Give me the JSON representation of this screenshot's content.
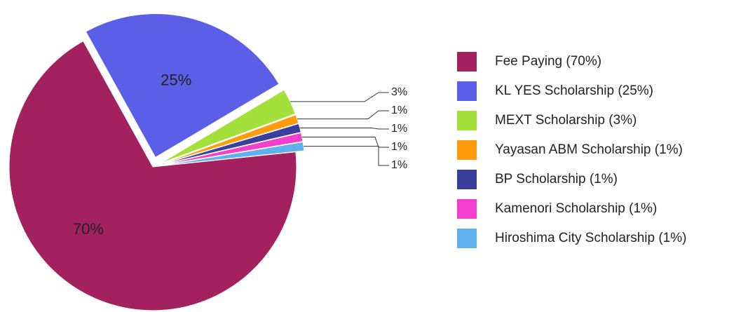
{
  "chart_data": {
    "type": "pie",
    "categories": [
      "Fee Paying (70%)",
      "KL YES Scholarship (25%)",
      "MEXT Scholarship (3%)",
      "Yayasan ABM Scholarship (1%)",
      "BP Scholarship (1%)",
      "Kamenori Scholarship (1%)",
      "Hiroshima City Scholarship (1%)"
    ],
    "values": [
      70,
      25,
      3,
      1,
      1,
      1,
      1
    ],
    "value_labels": [
      "70%",
      "25%",
      "3%",
      "1%",
      "1%",
      "1%",
      "1%"
    ],
    "colors": [
      "#a3215e",
      "#5b5ee6",
      "#a3e03a",
      "#ff9c0e",
      "#3b3f9c",
      "#f23fce",
      "#5fb0ec"
    ],
    "legend": "right"
  }
}
